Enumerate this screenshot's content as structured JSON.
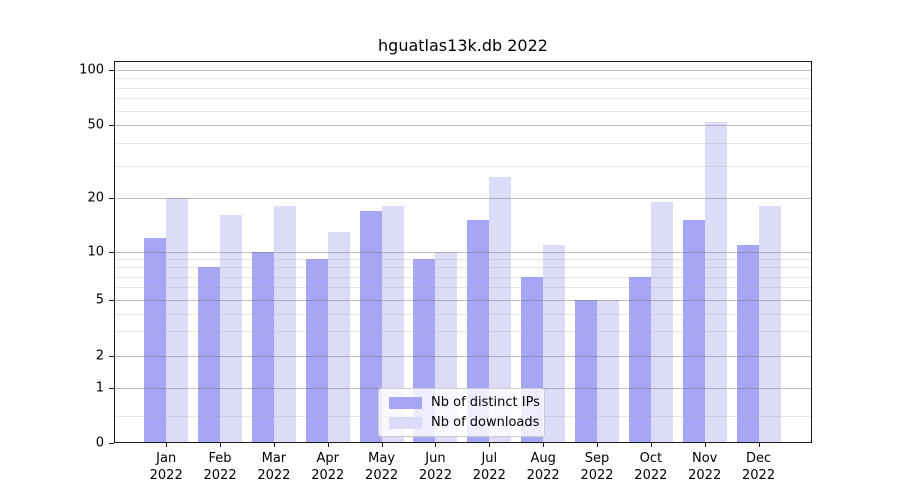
{
  "title": "hguatlas13k.db 2022",
  "chart_data": {
    "type": "bar",
    "title": "hguatlas13k.db 2022",
    "categories": [
      "Jan",
      "Feb",
      "Mar",
      "Apr",
      "May",
      "Jun",
      "Jul",
      "Aug",
      "Sep",
      "Oct",
      "Nov",
      "Dec"
    ],
    "year_label": "2022",
    "series": [
      {
        "name": "Nb of distinct IPs",
        "color": "#a6a6f4",
        "values": [
          12,
          8,
          10,
          9,
          17,
          9,
          15,
          7,
          5,
          7,
          15,
          11
        ]
      },
      {
        "name": "Nb of downloads",
        "color": "#dcdcf9",
        "values": [
          20,
          16,
          18,
          13,
          18,
          10,
          26,
          11,
          5,
          19,
          52,
          18
        ]
      }
    ],
    "y_ticks": [
      0,
      1,
      2,
      5,
      10,
      20,
      50,
      100
    ],
    "y_minor_ticks": [
      0.5,
      3,
      4,
      6,
      7,
      8,
      9,
      30,
      40,
      60,
      70,
      80,
      90
    ],
    "ylim": [
      0,
      110
    ],
    "yscale": "symlog",
    "grid": "on",
    "legend_position": "lower center"
  }
}
